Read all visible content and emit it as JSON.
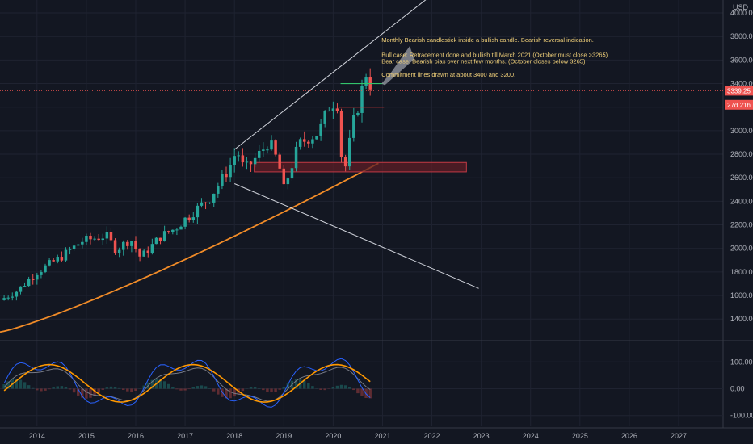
{
  "chart_data": {
    "type": "candlestick",
    "symbol_currency": "USD",
    "price_axis": {
      "ticks": [
        1400,
        1600,
        1800,
        2000,
        2200,
        2400,
        2600,
        2800,
        3000,
        3200,
        3400,
        3600,
        3800,
        4000
      ],
      "tick_labels": [
        "1400.00",
        "1600.00",
        "1800.00",
        "2000.00",
        "2200.00",
        "2400.00",
        "2600.00",
        "2800.00",
        "3000.00",
        "3200.00",
        "3400.00",
        "3600.00",
        "3800.00",
        "4000.00"
      ],
      "range": [
        1230,
        4110
      ]
    },
    "time_axis": {
      "ticks": [
        2014,
        2015,
        2016,
        2017,
        2018,
        2019,
        2020,
        2021,
        2022,
        2023,
        2024,
        2025,
        2026,
        2027
      ],
      "tick_labels": [
        "2014",
        "2015",
        "2016",
        "2017",
        "2018",
        "2019",
        "2020",
        "2021",
        "2022",
        "2023",
        "2024",
        "2025",
        "2026",
        "2027"
      ],
      "range": [
        2013.25,
        2027.9
      ]
    },
    "last_price": {
      "value": 3339.25,
      "label": "3339.25"
    },
    "countdown": {
      "value": 3220,
      "label": "27d 21h"
    },
    "key_levels": [
      3400,
      3200
    ],
    "support_zone": {
      "low": 2650,
      "high": 2730,
      "x_start": 2018.4,
      "x_end": 2022.7
    },
    "trend_lines": [
      {
        "name": "upper-channel",
        "x1": 2018.0,
        "y1": 2840,
        "x2": 2021.9,
        "y2": 4120
      },
      {
        "name": "lower-channel",
        "x1": 2018.0,
        "y1": 2550,
        "x2": 2022.95,
        "y2": 1660
      }
    ],
    "annotations": [
      {
        "text": "Monthly Bearish  candlestick inside a bullish candle. Bearish reversal indication.",
        "x": 2020.98,
        "y": 3755
      },
      {
        "text": "Bull case: Retracement done and bullish till March 2021 (October must close >3265)",
        "x": 2020.98,
        "y": 3625
      },
      {
        "text": "Bear case: Bearish bias over next few months. (October closes below 3265)",
        "x": 2020.98,
        "y": 3572
      },
      {
        "text": "Commitment lines drawn at about 3400 and 3200.",
        "x": 2020.98,
        "y": 3458
      }
    ],
    "oscillator": {
      "ticks": [
        100,
        0,
        -100
      ],
      "tick_labels": [
        "100.00",
        "0.00",
        "-100.00"
      ],
      "range": [
        -140,
        170
      ]
    },
    "colors": {
      "background": "#131722",
      "grid": "#1f2331",
      "bull": "#26a69a",
      "bear": "#ef5350",
      "ma": "#f28c28",
      "trend_line": "#d1d4dc",
      "annotation": "#f3d27a",
      "osc_fast": "#2962ff",
      "osc_slow": "#ff9800",
      "osc_avg": "#787b86",
      "zone_fill": "#5d1e25",
      "zone_border": "#c23a45"
    }
  }
}
